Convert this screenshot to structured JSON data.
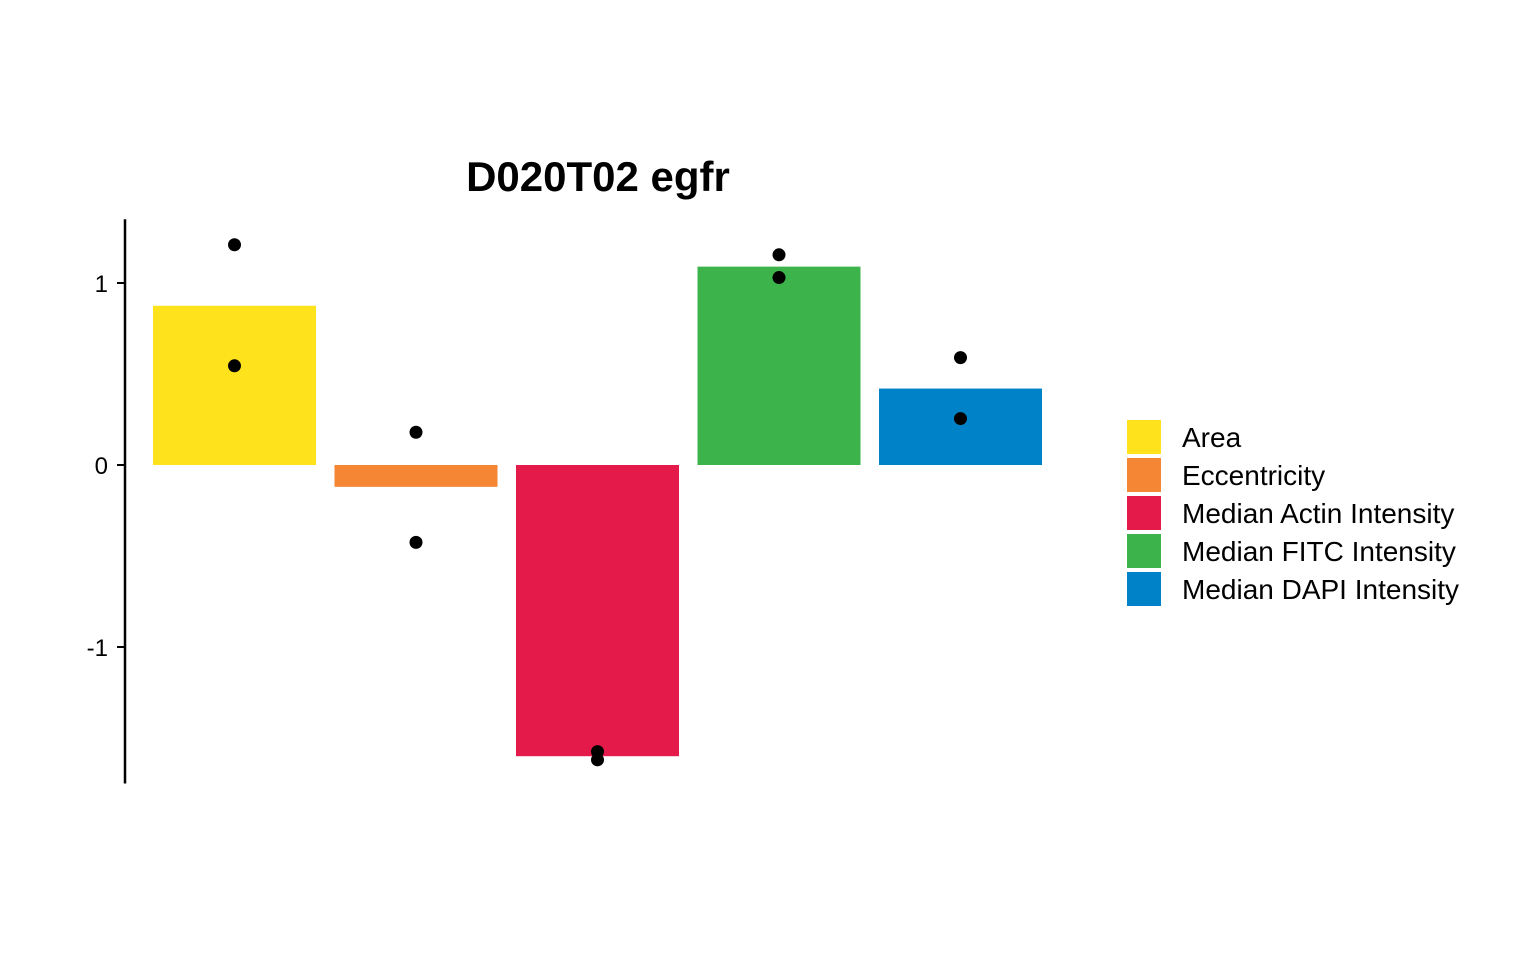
{
  "chart_data": {
    "type": "bar",
    "title": "D020T02 egfr",
    "xlabel": "",
    "ylabel": "",
    "ylim": [
      -1.75,
      1.35
    ],
    "yticks": [
      1,
      0,
      -1
    ],
    "ytick_labels": [
      "1",
      "0",
      "-1"
    ],
    "categories": [
      "Area",
      "Eccentricity",
      "Median Actin Intensity",
      "Median FITC Intensity",
      "Median DAPI Intensity"
    ],
    "values": [
      0.875,
      -0.12,
      -1.6,
      1.09,
      0.42
    ],
    "points": [
      [
        1.21,
        0.545
      ],
      [
        0.18,
        -0.425
      ],
      [
        -1.575,
        -1.62
      ],
      [
        1.155,
        1.03
      ],
      [
        0.59,
        0.255
      ]
    ],
    "colors": [
      "#FDE21C",
      "#F58634",
      "#E31A4A",
      "#3CB44B",
      "#0082C8"
    ],
    "legend": {
      "position": "right",
      "entries": [
        "Area",
        "Eccentricity",
        "Median Actin Intensity",
        "Median FITC Intensity",
        "Median DAPI Intensity"
      ]
    },
    "grid": false
  }
}
